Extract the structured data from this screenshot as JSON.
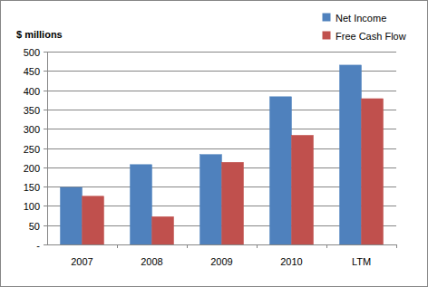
{
  "chart_data": {
    "type": "bar",
    "ylabel": "$ millions",
    "categories": [
      "2007",
      "2008",
      "2009",
      "2010",
      "LTM"
    ],
    "series": [
      {
        "name": "Net Income",
        "color": "#4f81bd",
        "values": [
          148,
          207,
          233,
          383,
          465
        ]
      },
      {
        "name": "Free Cash Flow",
        "color": "#c0504d",
        "values": [
          125,
          72,
          213,
          283,
          378
        ]
      }
    ],
    "ylim": [
      0,
      500
    ],
    "yticks": [
      {
        "value": 0,
        "label": "-"
      },
      50,
      100,
      150,
      200,
      250,
      300,
      350,
      400,
      450,
      500
    ],
    "grid": true,
    "legend": "top-right"
  }
}
